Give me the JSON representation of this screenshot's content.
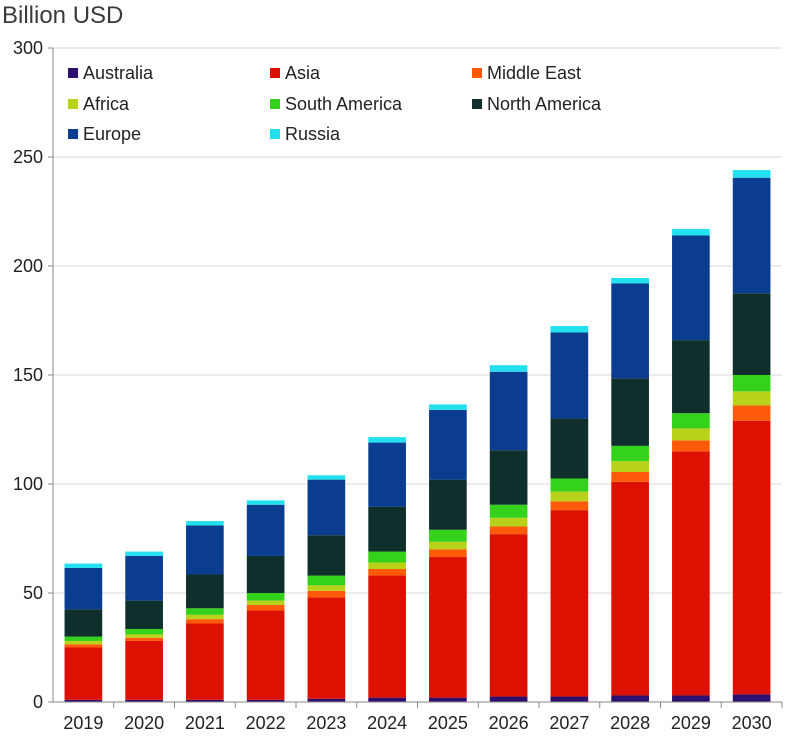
{
  "chart_data": {
    "type": "bar",
    "stacked": true,
    "title": "",
    "ylabel": "Billion USD",
    "xlabel": "",
    "ylim": [
      0,
      300
    ],
    "yticks": [
      0,
      50,
      100,
      150,
      200,
      250,
      300
    ],
    "grid": true,
    "legend_position": "top-left",
    "categories": [
      "2019",
      "2020",
      "2021",
      "2022",
      "2023",
      "2024",
      "2025",
      "2026",
      "2027",
      "2028",
      "2029",
      "2030"
    ],
    "series": [
      {
        "name": "Australia",
        "color": "#2e0f6e",
        "values": [
          1,
          1,
          1,
          1,
          1.5,
          2,
          2,
          2.5,
          2.5,
          3,
          3,
          3.5
        ]
      },
      {
        "name": "Asia",
        "color": "#dd1100",
        "values": [
          24,
          27,
          35,
          41,
          46.5,
          56,
          64.5,
          74.5,
          85.5,
          98,
          112,
          125.5
        ]
      },
      {
        "name": "Middle East",
        "color": "#ff5a0a",
        "values": [
          1.5,
          1.5,
          2,
          2.5,
          3,
          3,
          3.5,
          3.5,
          4,
          4.5,
          5,
          7
        ]
      },
      {
        "name": "Africa",
        "color": "#b8d21a",
        "values": [
          1.5,
          1.5,
          2,
          2,
          2.5,
          3,
          3.5,
          4,
          4.5,
          5,
          5.5,
          6.5
        ]
      },
      {
        "name": "South America",
        "color": "#34d21a",
        "values": [
          2,
          2.5,
          3,
          3.5,
          4.5,
          5,
          5.5,
          6,
          6,
          7,
          7,
          7.5
        ]
      },
      {
        "name": "North America",
        "color": "#0e2f2c",
        "values": [
          12.5,
          13,
          15.5,
          17,
          18.5,
          20.5,
          23,
          25,
          27.5,
          31,
          33.5,
          37.5
        ]
      },
      {
        "name": "Europe",
        "color": "#0a3c8f",
        "values": [
          19,
          20.5,
          22.5,
          23.5,
          25.5,
          29.5,
          32,
          36,
          39.5,
          43.5,
          48,
          53
        ]
      },
      {
        "name": "Russia",
        "color": "#22e0ee",
        "values": [
          2,
          2,
          2,
          2,
          2,
          2.5,
          2.5,
          3,
          3,
          2.5,
          3,
          3.5
        ]
      }
    ]
  }
}
